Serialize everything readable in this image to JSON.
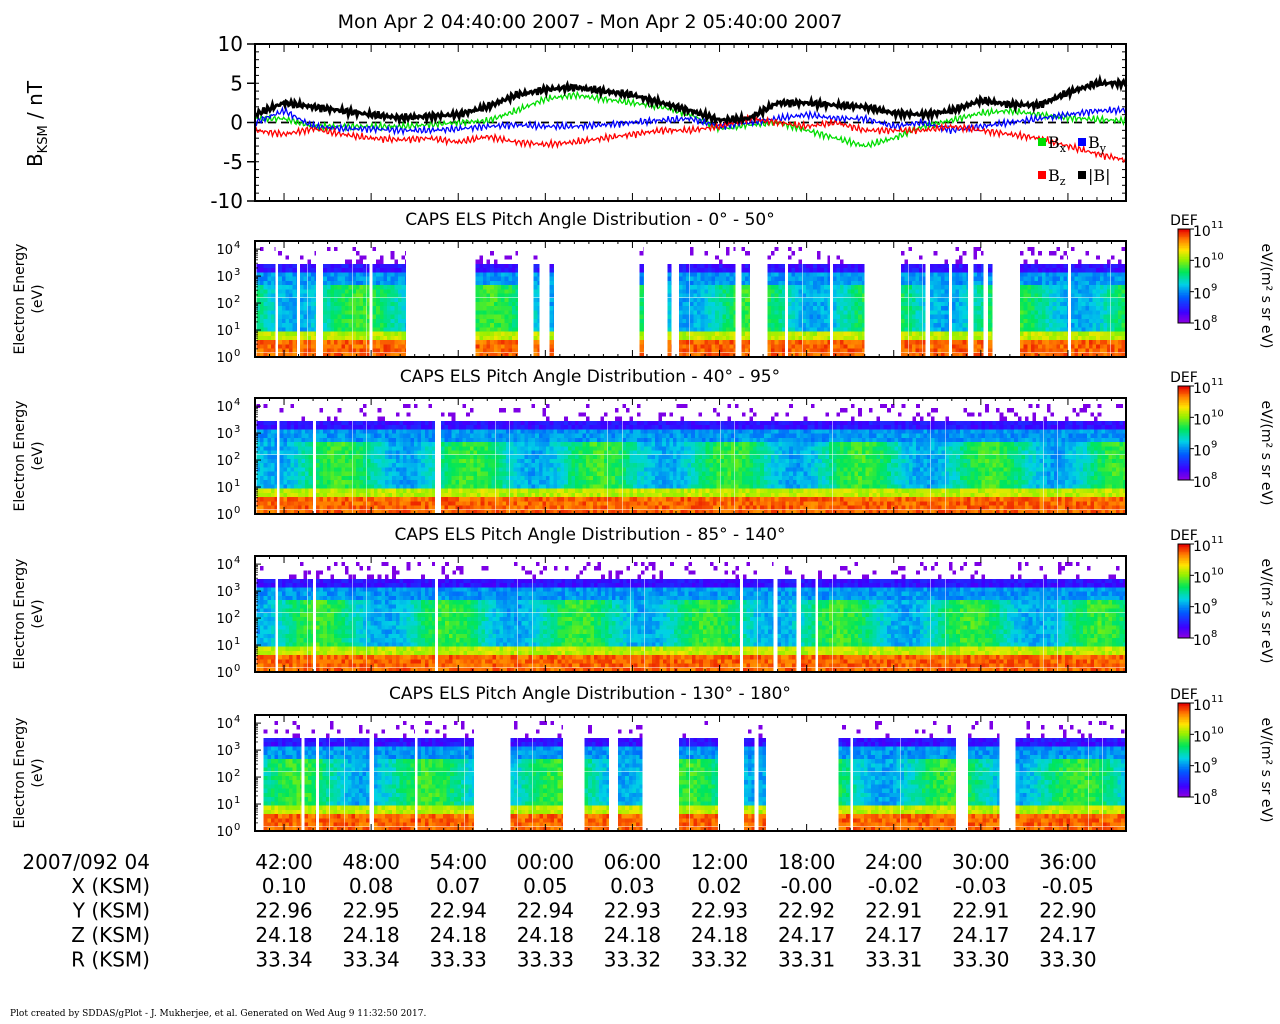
{
  "figure": {
    "title": "Mon Apr 2 04:40:00 2007 - Mon Apr 2 05:40:00 2007",
    "footer": "Plot created by SDDAS/gPlot - J. Mukherjee, et al.  Generated on Wed Aug 9 11:32:50 2017."
  },
  "chart_data": [
    {
      "type": "line",
      "ylabel_main": "B",
      "ylabel_sub": "KSM",
      "ylabel_unit": " / nT",
      "ylim": [
        -10,
        10
      ],
      "yticks": [
        "10",
        "5",
        "0",
        "-5",
        "-10"
      ],
      "ytick_values": [
        10,
        5,
        0,
        -5,
        -10
      ],
      "xlim_minutes": [
        40,
        100
      ],
      "legend": [
        {
          "label": "B",
          "sub": "x",
          "color": "#00dd00"
        },
        {
          "label": "B",
          "sub": "y",
          "color": "#0000ff"
        },
        {
          "label": "B",
          "sub": "z",
          "color": "#ff0000"
        },
        {
          "label": "|B|",
          "sub": "",
          "color": "#000000"
        }
      ],
      "series": [
        {
          "name": "Bx",
          "color": "#00dd00",
          "x": [
            40,
            42,
            44,
            46,
            48,
            50,
            52,
            54,
            56,
            58,
            60,
            62,
            64,
            66,
            68,
            70,
            72,
            74,
            76,
            78,
            80,
            82,
            84,
            86,
            88,
            90,
            92,
            94,
            96,
            98,
            100
          ],
          "y": [
            0.5,
            0.5,
            -0.5,
            -0.5,
            -0.5,
            -0.5,
            -0.3,
            0,
            0.2,
            1.5,
            3,
            3.5,
            3,
            2.5,
            2,
            1,
            -0.8,
            -0.3,
            0,
            -1,
            -2,
            -3,
            -2,
            -0.5,
            0.3,
            1.2,
            1.5,
            1,
            0.6,
            0.4,
            0.2
          ]
        },
        {
          "name": "By",
          "color": "#0000ff",
          "x": [
            40,
            42,
            44,
            46,
            48,
            50,
            52,
            54,
            56,
            58,
            60,
            62,
            64,
            66,
            68,
            70,
            72,
            74,
            76,
            78,
            80,
            82,
            84,
            86,
            88,
            90,
            92,
            94,
            96,
            98,
            100
          ],
          "y": [
            0,
            1.5,
            -0.5,
            -0.8,
            -0.8,
            -1,
            -1,
            -0.8,
            -0.5,
            -0.3,
            -0.5,
            -0.5,
            -0.3,
            0,
            0.3,
            0.5,
            -0.5,
            0,
            0.5,
            1,
            0.5,
            0.5,
            -0.5,
            0,
            -1,
            -0.5,
            0,
            0.5,
            1,
            1.5,
            1.6
          ]
        },
        {
          "name": "Bz",
          "color": "#ff0000",
          "x": [
            40,
            42,
            44,
            46,
            48,
            50,
            52,
            54,
            56,
            58,
            60,
            62,
            64,
            66,
            68,
            70,
            72,
            74,
            76,
            78,
            80,
            82,
            84,
            86,
            88,
            90,
            92,
            94,
            96,
            98,
            100
          ],
          "y": [
            -1,
            -1.5,
            -0.8,
            -1.5,
            -2,
            -2.2,
            -2,
            -2.5,
            -1.8,
            -2.5,
            -2.8,
            -2.5,
            -2,
            -1.5,
            -1,
            -1,
            -0.5,
            0.5,
            0,
            -0.5,
            0,
            -1,
            -1,
            -1,
            -0.5,
            -1,
            -1.5,
            -2,
            -3,
            -4,
            -4.8
          ]
        },
        {
          "name": "|B|",
          "color": "#000000",
          "x": [
            40,
            42,
            44,
            46,
            48,
            50,
            52,
            54,
            56,
            58,
            60,
            62,
            64,
            66,
            68,
            70,
            72,
            74,
            76,
            78,
            80,
            82,
            84,
            86,
            88,
            90,
            92,
            94,
            96,
            98,
            100
          ],
          "y": [
            1,
            2.5,
            2,
            1.5,
            1,
            0.6,
            0.8,
            1,
            2,
            3.5,
            4.2,
            4.5,
            4,
            3.5,
            2.5,
            1.5,
            0.3,
            0.5,
            2.5,
            2.5,
            2.2,
            2,
            1.2,
            1,
            1.5,
            2.8,
            2.3,
            2.2,
            3.8,
            5,
            5
          ]
        }
      ]
    },
    {
      "type": "heatmap",
      "title": "CAPS ELS Pitch Angle Distribution - 0° - 50°",
      "ylabel": "Electron Energy",
      "ylabel2": "(eV)",
      "ylim_eV": [
        1,
        20000
      ],
      "yscale": "log",
      "ytick_exponents": [
        "4",
        "3",
        "2",
        "1",
        "0"
      ],
      "colorbar": {
        "label": "DEF",
        "unit": "eV/(m² s sr eV)",
        "exponents": [
          "11",
          "10",
          "9",
          "8"
        ],
        "range": [
          100000000.0,
          100000000000.0
        ]
      },
      "coverage_minutes": [
        [
          40.1,
          41.4
        ],
        [
          41.6,
          42.9
        ],
        [
          43.1,
          44.2
        ],
        [
          44.7,
          47.9
        ],
        [
          48.1,
          50.4
        ],
        [
          55.2,
          58.1
        ],
        [
          59.2,
          59.6
        ],
        [
          60.3,
          60.6
        ],
        [
          66.5,
          66.8
        ],
        [
          68.4,
          68.7
        ],
        [
          69.2,
          73.1
        ],
        [
          73.5,
          74.1
        ],
        [
          75.3,
          76.5
        ],
        [
          76.7,
          79.6
        ],
        [
          79.8,
          82.0
        ],
        [
          84.5,
          86.2
        ],
        [
          86.5,
          87.8
        ],
        [
          88.0,
          89.1
        ],
        [
          89.5,
          90.2
        ],
        [
          90.5,
          90.8
        ],
        [
          92.7,
          96.0
        ],
        [
          96.2,
          100.0
        ]
      ]
    },
    {
      "type": "heatmap",
      "title": "CAPS ELS Pitch Angle Distribution - 40° - 95°",
      "ylabel": "Electron Energy",
      "ylabel2": "(eV)",
      "ylim_eV": [
        1,
        20000
      ],
      "yscale": "log",
      "ytick_exponents": [
        "4",
        "3",
        "2",
        "1",
        "0"
      ],
      "colorbar": {
        "label": "DEF",
        "unit": "eV/(m² s sr eV)",
        "exponents": [
          "11",
          "10",
          "9",
          "8"
        ],
        "range": [
          100000000.0,
          100000000000.0
        ]
      },
      "coverage_minutes": [
        [
          40.1,
          41.5
        ],
        [
          41.7,
          44.0
        ],
        [
          44.2,
          52.4
        ],
        [
          52.8,
          100.0
        ]
      ]
    },
    {
      "type": "heatmap",
      "title": "CAPS ELS Pitch Angle Distribution - 85° - 140°",
      "ylabel": "Electron Energy",
      "ylabel2": "(eV)",
      "ylim_eV": [
        1,
        20000
      ],
      "yscale": "log",
      "ytick_exponents": [
        "4",
        "3",
        "2",
        "1",
        "0"
      ],
      "colorbar": {
        "label": "DEF",
        "unit": "eV/(m² s sr eV)",
        "exponents": [
          "11",
          "10",
          "9",
          "8"
        ],
        "range": [
          100000000.0,
          100000000000.0
        ]
      },
      "coverage_minutes": [
        [
          40.1,
          41.4
        ],
        [
          41.6,
          44.0
        ],
        [
          44.2,
          52.4
        ],
        [
          52.6,
          73.4
        ],
        [
          73.6,
          75.7
        ],
        [
          76.0,
          77.3
        ],
        [
          77.6,
          78.6
        ],
        [
          78.8,
          100.0
        ]
      ]
    },
    {
      "type": "heatmap",
      "title": "CAPS ELS Pitch Angle Distribution - 130° - 180°",
      "ylabel": "Electron Energy",
      "ylabel2": "(eV)",
      "ylim_eV": [
        1,
        20000
      ],
      "yscale": "log",
      "ytick_exponents": [
        "4",
        "3",
        "2",
        "1",
        "0"
      ],
      "colorbar": {
        "label": "DEF",
        "unit": "eV/(m² s sr eV)",
        "exponents": [
          "11",
          "10",
          "9",
          "8"
        ],
        "range": [
          100000000.0,
          100000000000.0
        ]
      },
      "coverage_minutes": [
        [
          40.6,
          43.2
        ],
        [
          43.4,
          44.2
        ],
        [
          44.4,
          47.9
        ],
        [
          48.2,
          51.0
        ],
        [
          51.2,
          55.1
        ],
        [
          57.6,
          61.2
        ],
        [
          62.7,
          64.4
        ],
        [
          65.0,
          66.7
        ],
        [
          69.2,
          71.9
        ],
        [
          73.7,
          74.4
        ],
        [
          74.7,
          75.2
        ],
        [
          80.2,
          81.0
        ],
        [
          81.2,
          88.3
        ],
        [
          89.1,
          91.3
        ],
        [
          92.4,
          100.0
        ]
      ]
    }
  ],
  "time_axis": {
    "xlim_minutes": [
      40,
      100
    ],
    "tick_minutes": [
      42,
      48,
      54,
      60,
      66,
      72,
      78,
      84,
      90,
      96
    ],
    "header_label": "2007/092 04",
    "tick_labels": [
      "42:00",
      "48:00",
      "54:00",
      "00:00",
      "06:00",
      "12:00",
      "18:00",
      "24:00",
      "30:00",
      "36:00"
    ],
    "rows": [
      {
        "label": "X (KSM)",
        "values": [
          "0.10",
          "0.08",
          "0.07",
          "0.05",
          "0.03",
          "0.02",
          "-0.00",
          "-0.02",
          "-0.03",
          "-0.05"
        ]
      },
      {
        "label": "Y (KSM)",
        "values": [
          "22.96",
          "22.95",
          "22.94",
          "22.94",
          "22.93",
          "22.93",
          "22.92",
          "22.91",
          "22.91",
          "22.90"
        ]
      },
      {
        "label": "Z (KSM)",
        "values": [
          "24.18",
          "24.18",
          "24.18",
          "24.18",
          "24.18",
          "24.18",
          "24.17",
          "24.17",
          "24.17",
          "24.17"
        ]
      },
      {
        "label": "R (KSM)",
        "values": [
          "33.34",
          "33.34",
          "33.33",
          "33.33",
          "33.32",
          "33.32",
          "33.31",
          "33.31",
          "33.30",
          "33.30"
        ]
      }
    ]
  }
}
